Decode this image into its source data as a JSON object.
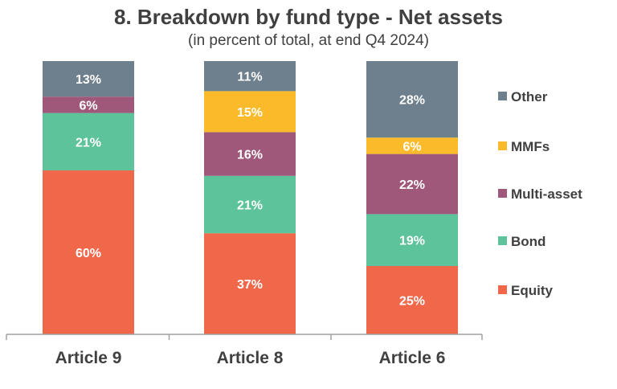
{
  "chart_data": {
    "type": "bar",
    "stacked": true,
    "title": "8. Breakdown by fund type - Net assets",
    "subtitle": "(in percent of total, at end Q4 2024)",
    "categories": [
      "Article 9",
      "Article 8",
      "Article 6"
    ],
    "ylim": [
      0,
      100
    ],
    "grid": false,
    "legend_position": "right",
    "value_suffix": "%",
    "series": [
      {
        "name": "Equity",
        "values": [
          60,
          37,
          25
        ],
        "color": "#F0674A"
      },
      {
        "name": "Bond",
        "values": [
          21,
          21,
          19
        ],
        "color": "#5CC39A"
      },
      {
        "name": "Multi-asset",
        "values": [
          6,
          16,
          22
        ],
        "color": "#A0587A"
      },
      {
        "name": "MMFs",
        "values": [
          0,
          15,
          6
        ],
        "color": "#FBBA2A"
      },
      {
        "name": "Other",
        "values": [
          13,
          11,
          28
        ],
        "color": "#6E7F8D"
      }
    ],
    "legend_order": [
      "Other",
      "MMFs",
      "Multi-asset",
      "Bond",
      "Equity"
    ]
  }
}
